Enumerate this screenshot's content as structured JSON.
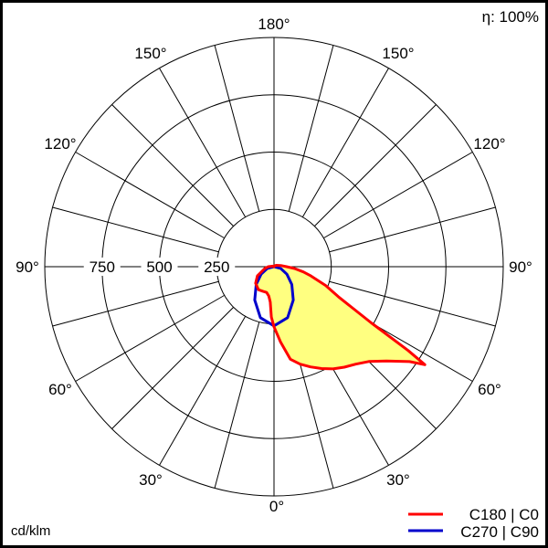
{
  "chart_data": {
    "type": "polar",
    "unit_label": "cd/klm",
    "efficiency_label": "η: 100%",
    "radial_ticks": [
      250,
      500,
      750
    ],
    "radial_max": 1000,
    "angle_labels": {
      "top": "180°",
      "upper": "150°",
      "upper_mid": "120°",
      "horizontal": "90°",
      "lower_mid": "60°",
      "lower": "30°",
      "bottom": "0°"
    },
    "grid": true,
    "legend_position": "bottom-right",
    "series": [
      {
        "name": "C180 | C0",
        "color": "#ff0000",
        "fill": "#ffff80",
        "right_half_C0": {
          "gamma": [
            0,
            5,
            10,
            15,
            20,
            25,
            30,
            35,
            40,
            45,
            50,
            55,
            57,
            58,
            60,
            65,
            70,
            76,
            80,
            85,
            90,
            100,
            120,
            150,
            180
          ],
          "intensity": [
            262,
            330,
            410,
            440,
            465,
            490,
            515,
            535,
            555,
            585,
            640,
            722,
            785,
            690,
            490,
            310,
            240,
            166,
            130,
            90,
            55,
            30,
            12,
            4,
            0
          ]
        },
        "left_half_C180": {
          "gamma": [
            0,
            3,
            6,
            10,
            16,
            25,
            34,
            48,
            61,
            79,
            90,
            120,
            180
          ],
          "intensity": [
            262,
            220,
            155,
            130,
            117,
            118,
            121,
            108,
            83,
            41,
            25,
            5,
            0
          ]
        }
      },
      {
        "name": "C270 | C90",
        "color": "#0000cc",
        "gamma": [
          0,
          15,
          30,
          45,
          60,
          75,
          90
        ],
        "intensity": [
          258,
          230,
          168,
          110,
          65,
          30,
          0
        ]
      }
    ]
  }
}
